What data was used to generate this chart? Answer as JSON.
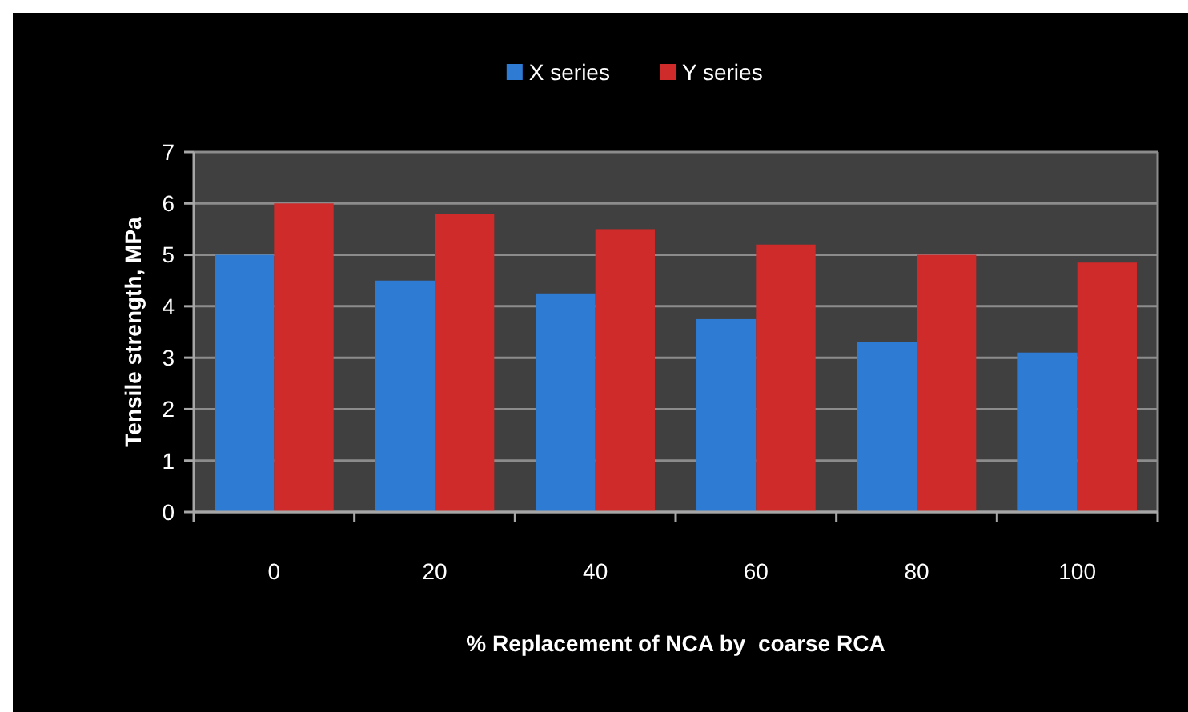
{
  "chart_data": {
    "type": "bar",
    "xlabel": "% Replacement of NCA by  coarse RCA",
    "ylabel": "Tensile strength, MPa",
    "categories": [
      "0",
      "20",
      "40",
      "60",
      "80",
      "100"
    ],
    "series": [
      {
        "name": "X series",
        "color": "#2e7bd4",
        "values": [
          5.0,
          4.5,
          4.25,
          3.75,
          3.3,
          3.1
        ]
      },
      {
        "name": "Y series",
        "color": "#d02b2b",
        "values": [
          6.0,
          5.8,
          5.5,
          5.2,
          5.0,
          4.85
        ]
      }
    ],
    "ylim": [
      0,
      7
    ],
    "yticks": [
      0,
      1,
      2,
      3,
      4,
      5,
      6,
      7
    ],
    "grid": "y",
    "legend": "top"
  }
}
